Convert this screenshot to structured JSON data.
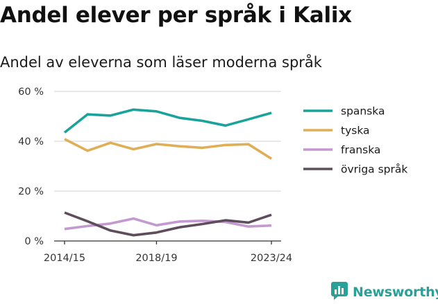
{
  "title": "Andel elever per språk i Kalix",
  "subtitle": "Andel av eleverna som läser moderna språk",
  "logo_text": "Newsworthy",
  "chart_data": {
    "type": "line",
    "title": "Andel elever per språk i Kalix",
    "subtitle": "Andel av eleverna som läser moderna språk",
    "xlabel": "",
    "ylabel": "",
    "x": [
      "2014/15",
      "2015/16",
      "2016/17",
      "2017/18",
      "2018/19",
      "2019/20",
      "2020/21",
      "2021/22",
      "2022/23",
      "2023/24"
    ],
    "x_tick_labels": [
      "2014/15",
      "2018/19",
      "2023/24"
    ],
    "y_tick_labels": [
      "0 %",
      "20 %",
      "40 %",
      "60 %"
    ],
    "y_ticks": [
      0,
      20,
      40,
      60
    ],
    "ylim": [
      0,
      60
    ],
    "grid": "horizontal",
    "legend_position": "right",
    "series": [
      {
        "name": "spanska",
        "color": "#1aa39a",
        "values": [
          43.5,
          50.8,
          50.3,
          52.7,
          52.0,
          49.4,
          48.2,
          46.3,
          48.8,
          51.4
        ]
      },
      {
        "name": "tyska",
        "color": "#dfae55",
        "values": [
          40.9,
          36.2,
          39.4,
          36.8,
          38.9,
          38.0,
          37.4,
          38.5,
          38.8,
          33.0
        ]
      },
      {
        "name": "franska",
        "color": "#c499d0",
        "values": [
          4.8,
          6.0,
          7.0,
          9.0,
          6.3,
          7.8,
          8.1,
          7.6,
          5.8,
          6.2
        ]
      },
      {
        "name": "övriga språk",
        "color": "#5e4e5c",
        "values": [
          11.4,
          7.9,
          4.2,
          2.3,
          3.4,
          5.5,
          6.8,
          8.3,
          7.4,
          10.5
        ]
      }
    ]
  }
}
